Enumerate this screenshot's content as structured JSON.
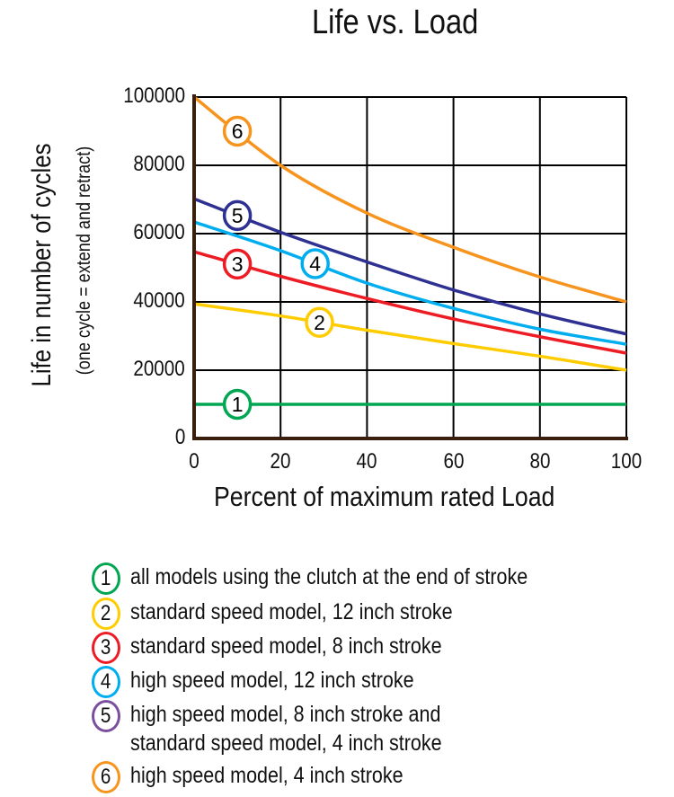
{
  "chart_data": {
    "type": "line",
    "title": "Life vs. Load",
    "xlabel": "Percent of maximum rated Load",
    "ylabel": "Life in number of cycles",
    "ylabel_sub": "(one cycle = extend and retract)",
    "xlim": [
      0,
      100
    ],
    "ylim": [
      0,
      100000
    ],
    "x_ticks": [
      "0",
      "20",
      "40",
      "60",
      "80",
      "100"
    ],
    "y_ticks": [
      "0",
      "20000",
      "40000",
      "60000",
      "80000",
      "100000"
    ],
    "grid": true,
    "legend_placement": "bottom",
    "x": [
      0,
      20,
      40,
      60,
      80,
      100
    ],
    "series": [
      {
        "name": "all models using the clutch at the end of stroke",
        "marker": "1",
        "color": "#00A651",
        "legend_color": "#00A651",
        "label_x": 10,
        "values": [
          10000,
          10000,
          10000,
          10000,
          10000,
          10000
        ]
      },
      {
        "name": "standard speed model, 12 inch stroke",
        "marker": "2",
        "color": "#FFCC00",
        "legend_color": "#FFCC00",
        "label_x": 29,
        "values": [
          39400,
          35900,
          31700,
          27800,
          24100,
          20000
        ]
      },
      {
        "name": "standard speed model, 8 inch stroke",
        "marker": "3",
        "color": "#ED1C24",
        "legend_color": "#ED1C24",
        "label_x": 10,
        "values": [
          54700,
          47500,
          41000,
          35000,
          29800,
          25000
        ]
      },
      {
        "name": "high speed model, 12 inch stroke",
        "marker": "4",
        "color": "#00AEEF",
        "legend_color": "#00AEEF",
        "label_x": 28,
        "values": [
          63400,
          55000,
          45500,
          38100,
          32000,
          27600
        ]
      },
      {
        "name": "high speed model, 8 inch stroke and",
        "name_line2": "standard speed model, 4 inch stroke",
        "marker": "5",
        "color": "#2E3192",
        "legend_color": "#7B4F9E",
        "label_x": 10,
        "values": [
          70200,
          60400,
          51700,
          43500,
          36500,
          30600
        ]
      },
      {
        "name": "high speed model, 4 inch stroke",
        "marker": "6",
        "color": "#F7941D",
        "legend_color": "#F7941D",
        "label_x": 10,
        "values": [
          100000,
          80000,
          66000,
          56000,
          47300,
          40000
        ]
      }
    ]
  }
}
